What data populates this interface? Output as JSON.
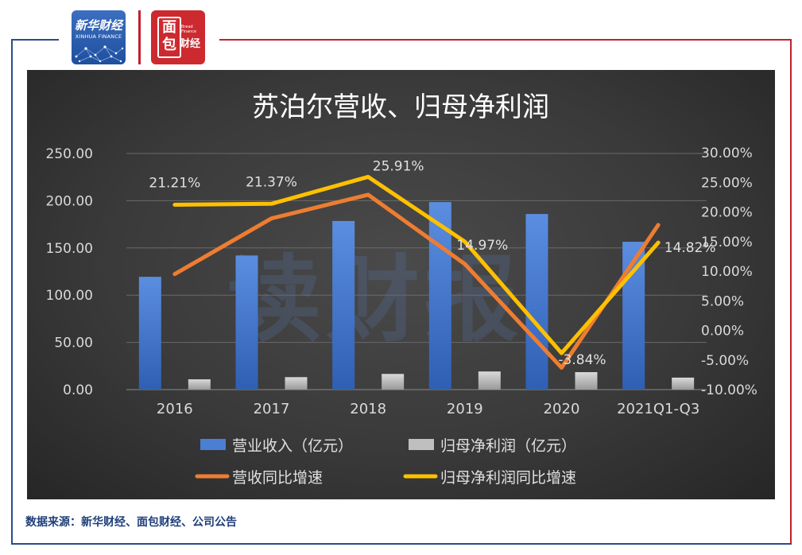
{
  "branding": {
    "xinhua_cn": "新华财经",
    "xinhua_en": "XINHUA FINANCE",
    "mianbao_c1": "面",
    "mianbao_c2": "包",
    "mianbao_c3": "财经",
    "mianbao_en": "Bread Finance"
  },
  "footer": {
    "source": "数据来源：新华财经、面包财经、公司公告"
  },
  "chart_data": {
    "type": "bar",
    "title": "苏泊尔营收、归母净利润",
    "categories": [
      "2016",
      "2017",
      "2018",
      "2019",
      "2020",
      "2021Q1-Q3"
    ],
    "y_left": {
      "ticks": [
        "250.00",
        "200.00",
        "150.00",
        "100.00",
        "50.00",
        "0.00"
      ],
      "ylim": [
        0,
        250
      ]
    },
    "y_right": {
      "ticks": [
        "30.00%",
        "25.00%",
        "20.00%",
        "15.00%",
        "10.00%",
        "5.00%",
        "0.00%",
        "-5.00%",
        "-10.00%"
      ],
      "ylim": [
        -10,
        30
      ]
    },
    "series": [
      {
        "name": "营业收入（亿元）",
        "kind": "bar",
        "axis": "left",
        "color": "#4a7fd4",
        "values": [
          119.4,
          142.0,
          178.5,
          198.5,
          185.9,
          156.5
        ]
      },
      {
        "name": "归母净利润（亿元）",
        "kind": "bar",
        "axis": "left",
        "color": "#bfbfbf",
        "values": [
          10.9,
          13.2,
          16.6,
          19.2,
          18.5,
          12.7
        ]
      },
      {
        "name": "营收同比增速",
        "kind": "line",
        "axis": "right",
        "color": "#ee7d31",
        "values": [
          9.5,
          18.9,
          22.9,
          11.2,
          -6.3,
          17.8
        ]
      },
      {
        "name": "归母净利润同比增速",
        "kind": "line",
        "axis": "right",
        "color": "#ffc000",
        "values": [
          21.21,
          21.37,
          25.91,
          14.97,
          -3.84,
          14.82
        ],
        "labels": [
          "21.21%",
          "21.37%",
          "25.91%",
          "14.97%",
          "-3.84%",
          "14.82%"
        ]
      }
    ],
    "legend_position": "bottom",
    "grid": true,
    "watermark": "读财报"
  }
}
